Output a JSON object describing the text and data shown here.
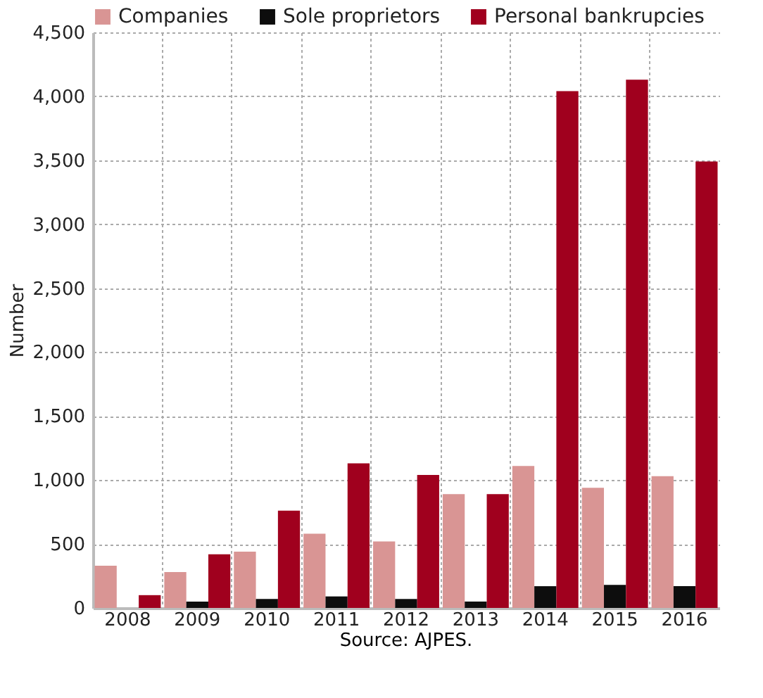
{
  "chart_data": {
    "type": "bar",
    "ylabel": "Number",
    "annotations": [
      "Source: AJPES."
    ],
    "categories": [
      "2008",
      "2009",
      "2010",
      "2011",
      "2012",
      "2013",
      "2014",
      "2015",
      "2016"
    ],
    "series": [
      {
        "name": "Companies",
        "color": "#d99594",
        "values": [
          330,
          280,
          440,
          580,
          520,
          890,
          1110,
          940,
          1030
        ]
      },
      {
        "name": "Sole proprietors",
        "color": "#0d0d0d",
        "values": [
          0,
          50,
          70,
          90,
          70,
          50,
          170,
          180,
          170
        ]
      },
      {
        "name": "Personal bankrupcies",
        "color": "#a0001e",
        "values": [
          100,
          420,
          760,
          1130,
          1040,
          890,
          4040,
          4130,
          3490
        ]
      }
    ],
    "ylim": [
      0,
      4500
    ],
    "yticks": [
      0,
      500,
      {
        "value": 1000,
        "label": "1,000"
      },
      {
        "value": 1500,
        "label": "1,500"
      },
      {
        "value": 2000,
        "label": "2,000"
      },
      {
        "value": 2500,
        "label": "2,500"
      },
      {
        "value": 3000,
        "label": "3,000"
      },
      {
        "value": 3500,
        "label": "3,500"
      },
      {
        "value": 4000,
        "label": "4,000"
      },
      {
        "value": 4500,
        "label": "4,500"
      }
    ],
    "grid": true,
    "legend": "top"
  }
}
